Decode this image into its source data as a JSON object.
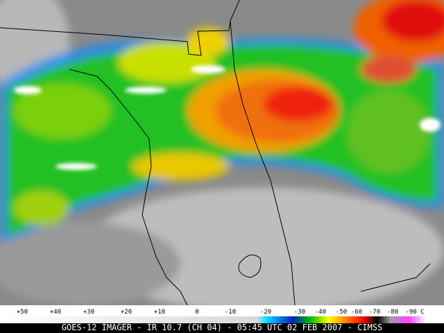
{
  "colorbar": {
    "labels": [
      "+50",
      "+40",
      "+30",
      "+20",
      "+10",
      "0",
      "-10",
      "-20",
      "-30",
      "-40",
      "-50",
      "-60",
      "-70",
      "-80",
      "-90 C"
    ]
  },
  "caption": "GOES-12 IMAGER - IR 10.7 (CH 04) - 05:45 UTC 02 FEB 2007 - CIMSS"
}
